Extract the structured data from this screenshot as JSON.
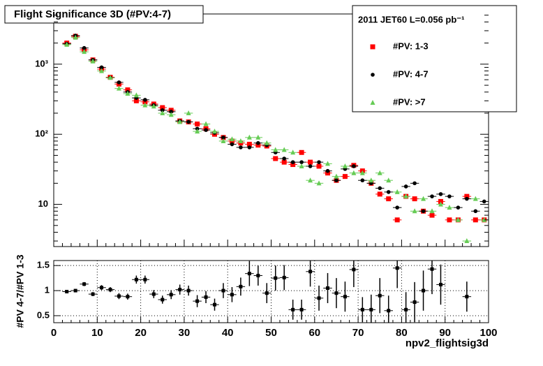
{
  "chart_data": [
    {
      "type": "scatter",
      "title": "Flight Significance 3D (#PV:4-7)",
      "legend_title": "2011 JET60 L=0.056 pb⁻¹",
      "legend": "top-right",
      "log_y": true,
      "x": [
        3,
        5,
        7,
        9,
        11,
        13,
        15,
        17,
        19,
        21,
        23,
        25,
        27,
        29,
        31,
        33,
        35,
        37,
        39,
        41,
        43,
        45,
        47,
        49,
        51,
        53,
        55,
        57,
        59,
        61,
        63,
        65,
        67,
        69,
        71,
        73,
        75,
        77,
        79,
        81,
        83,
        85,
        87,
        89,
        91,
        93,
        95,
        97,
        99
      ],
      "series": [
        {
          "name": "#PV: 1-3",
          "color": "#ff0000",
          "marker": "square",
          "values": [
            2000,
            2500,
            1600,
            1150,
            850,
            650,
            520,
            430,
            300,
            290,
            270,
            240,
            220,
            155,
            150,
            140,
            120,
            100,
            90,
            80,
            75,
            72,
            70,
            68,
            45,
            40,
            37,
            55,
            40,
            35,
            28,
            22,
            25,
            36,
            30,
            20,
            14,
            12,
            6,
            13,
            12,
            8,
            7,
            11,
            6,
            6,
            13,
            6,
            6
          ]
        },
        {
          "name": "#PV: 4-7",
          "color": "#000000",
          "marker": "circle",
          "values": [
            1950,
            2550,
            1700,
            1150,
            900,
            640,
            550,
            400,
            330,
            310,
            260,
            220,
            210,
            155,
            150,
            120,
            115,
            105,
            90,
            72,
            65,
            65,
            75,
            70,
            55,
            45,
            40,
            40,
            35,
            40,
            30,
            22,
            32,
            35,
            22,
            20,
            17,
            15,
            9,
            18,
            20,
            8,
            13,
            14,
            13,
            9,
            12,
            8,
            11
          ]
        },
        {
          "name": "#PV: >7",
          "color": "#66cc55",
          "marker": "triangle",
          "values": [
            1900,
            2400,
            1500,
            1100,
            800,
            640,
            450,
            380,
            360,
            260,
            250,
            200,
            190,
            150,
            200,
            110,
            140,
            110,
            80,
            85,
            80,
            90,
            90,
            75,
            60,
            60,
            55,
            35,
            22,
            20,
            38,
            25,
            35,
            28,
            28,
            22,
            28,
            22,
            15,
            13,
            8,
            12,
            8,
            10,
            9,
            6,
            3,
            12,
            6
          ]
        }
      ],
      "xlim": [
        0,
        100
      ],
      "ylim": [
        2.5,
        5200
      ],
      "yticks": [
        10,
        {
          "value": 100,
          "label": "10²"
        },
        {
          "value": 1000,
          "label": "10³"
        }
      ]
    },
    {
      "type": "errorbar",
      "xlabel": "npv2_flightsig3d",
      "ylabel": "#PV 4-7/#PV 1-3",
      "color": "#000000",
      "grid": true,
      "x": [
        3,
        5,
        7,
        9,
        11,
        13,
        15,
        17,
        19,
        21,
        23,
        25,
        27,
        29,
        31,
        33,
        35,
        37,
        39,
        41,
        43,
        45,
        47,
        49,
        51,
        53,
        55,
        57,
        59,
        61,
        63,
        65,
        67,
        69,
        71,
        73,
        75,
        77,
        79,
        81,
        83,
        85,
        87,
        89,
        91,
        93,
        95,
        97,
        99
      ],
      "values": [
        0.98,
        1.0,
        1.13,
        0.93,
        1.06,
        1.02,
        0.89,
        0.88,
        1.22,
        1.22,
        0.93,
        0.82,
        0.92,
        1.02,
        1.0,
        0.79,
        0.87,
        0.72,
        1.0,
        0.92,
        1.08,
        1.34,
        1.3,
        0.95,
        1.25,
        1.26,
        0.62,
        0.62,
        1.38,
        0.85,
        1.05,
        0.95,
        0.88,
        1.42,
        0.62,
        0.62,
        0.9,
        0.6,
        1.45,
        0.62,
        0.77,
        1.0,
        1.43,
        1.12,
        null,
        null,
        0.88,
        null,
        null
      ],
      "errors": [
        0.03,
        0.03,
        0.04,
        0.04,
        0.05,
        0.05,
        0.06,
        0.06,
        0.08,
        0.08,
        0.08,
        0.08,
        0.09,
        0.1,
        0.1,
        0.12,
        0.12,
        0.12,
        0.15,
        0.15,
        0.18,
        0.25,
        0.2,
        0.2,
        0.25,
        0.25,
        0.2,
        0.2,
        0.3,
        0.25,
        0.3,
        0.3,
        0.3,
        0.35,
        0.25,
        0.3,
        0.35,
        0.3,
        0.4,
        0.35,
        0.4,
        0.4,
        0.5,
        0.4,
        null,
        null,
        0.3,
        null,
        null
      ],
      "xlim": [
        0,
        100
      ],
      "ylim": [
        0.36,
        1.6
      ],
      "xticks": [
        0,
        10,
        20,
        30,
        40,
        50,
        60,
        70,
        80,
        90,
        100
      ],
      "yticks": [
        0.5,
        1,
        1.5
      ]
    }
  ]
}
